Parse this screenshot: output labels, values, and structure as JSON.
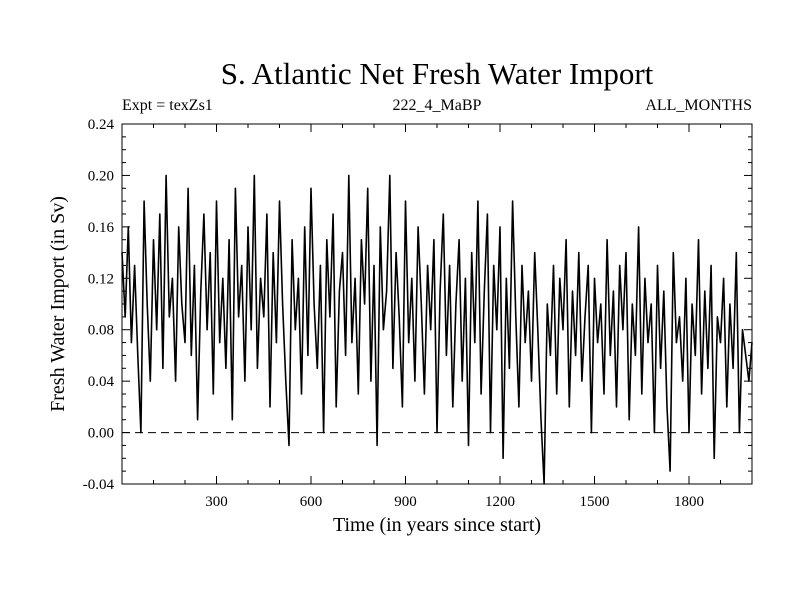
{
  "chart_data": {
    "type": "line",
    "title": "S. Atlantic Net Fresh Water Import",
    "subtitle_left": "Expt = texZs1",
    "subtitle_center": "222_4_MaBP",
    "subtitle_right": "ALL_MONTHS",
    "xlabel": "Time (in years since start)",
    "ylabel": "Fresh Water Import (in Sv)",
    "xlim": [
      0,
      2000
    ],
    "ylim": [
      -0.04,
      0.24
    ],
    "x_ticks": [
      300,
      600,
      900,
      1200,
      1500,
      1800
    ],
    "x_tick_labels": [
      "300",
      "600",
      "900",
      "1200",
      "1500",
      "1800"
    ],
    "y_ticks": [
      -0.04,
      0.0,
      0.04,
      0.08,
      0.12,
      0.16,
      0.2,
      0.24
    ],
    "y_tick_labels": [
      "-0.04",
      "0.00",
      "0.04",
      "0.08",
      "0.12",
      "0.16",
      "0.20",
      "0.24"
    ],
    "reference_line": {
      "y": 0.0,
      "style": "dashed"
    },
    "line_color": "#000000",
    "series": [
      {
        "name": "Net Fresh Water Import",
        "x": [
          0,
          10,
          20,
          30,
          40,
          50,
          60,
          70,
          80,
          90,
          100,
          110,
          120,
          130,
          140,
          150,
          160,
          170,
          180,
          190,
          200,
          210,
          220,
          230,
          240,
          250,
          260,
          270,
          280,
          290,
          300,
          310,
          320,
          330,
          340,
          350,
          360,
          370,
          380,
          390,
          400,
          410,
          420,
          430,
          440,
          450,
          460,
          470,
          480,
          490,
          500,
          510,
          520,
          530,
          540,
          550,
          560,
          570,
          580,
          590,
          600,
          610,
          620,
          630,
          640,
          650,
          660,
          670,
          680,
          690,
          700,
          710,
          720,
          730,
          740,
          750,
          760,
          770,
          780,
          790,
          800,
          810,
          820,
          830,
          840,
          850,
          860,
          870,
          880,
          890,
          900,
          910,
          920,
          930,
          940,
          950,
          960,
          970,
          980,
          990,
          1000,
          1010,
          1020,
          1030,
          1040,
          1050,
          1060,
          1070,
          1080,
          1090,
          1100,
          1110,
          1120,
          1130,
          1140,
          1150,
          1160,
          1170,
          1180,
          1190,
          1200,
          1210,
          1220,
          1230,
          1240,
          1250,
          1260,
          1270,
          1280,
          1290,
          1300,
          1310,
          1320,
          1330,
          1340,
          1350,
          1360,
          1370,
          1380,
          1390,
          1400,
          1410,
          1420,
          1430,
          1440,
          1450,
          1460,
          1470,
          1480,
          1490,
          1500,
          1510,
          1520,
          1530,
          1540,
          1550,
          1560,
          1570,
          1580,
          1590,
          1600,
          1610,
          1620,
          1630,
          1640,
          1650,
          1660,
          1670,
          1680,
          1690,
          1700,
          1710,
          1720,
          1730,
          1740,
          1750,
          1760,
          1770,
          1780,
          1790,
          1800,
          1810,
          1820,
          1830,
          1840,
          1850,
          1860,
          1870,
          1880,
          1890,
          1900,
          1910,
          1920,
          1930,
          1940,
          1950,
          1960,
          1970,
          1980,
          1990,
          2000
        ],
        "values": [
          0.14,
          0.09,
          0.16,
          0.07,
          0.13,
          0.06,
          0.0,
          0.18,
          0.1,
          0.04,
          0.15,
          0.08,
          0.17,
          0.05,
          0.2,
          0.09,
          0.12,
          0.04,
          0.16,
          0.1,
          0.07,
          0.19,
          0.06,
          0.13,
          0.01,
          0.11,
          0.17,
          0.08,
          0.14,
          0.03,
          0.18,
          0.07,
          0.12,
          0.05,
          0.15,
          0.01,
          0.19,
          0.09,
          0.13,
          0.04,
          0.16,
          0.08,
          0.2,
          0.05,
          0.12,
          0.09,
          0.17,
          0.02,
          0.14,
          0.07,
          0.18,
          0.1,
          0.04,
          -0.01,
          0.15,
          0.08,
          0.12,
          0.03,
          0.16,
          0.06,
          0.19,
          0.1,
          0.05,
          0.13,
          0.0,
          0.15,
          0.09,
          0.17,
          0.02,
          0.11,
          0.14,
          0.06,
          0.2,
          0.07,
          0.12,
          0.03,
          0.15,
          0.1,
          0.19,
          0.04,
          0.13,
          -0.01,
          0.16,
          0.08,
          0.11,
          0.2,
          0.05,
          0.14,
          0.09,
          0.02,
          0.18,
          0.07,
          0.12,
          0.04,
          0.16,
          0.1,
          0.03,
          0.13,
          0.08,
          0.15,
          0.0,
          0.11,
          0.17,
          0.06,
          0.13,
          0.02,
          0.1,
          0.15,
          0.04,
          0.12,
          -0.01,
          0.14,
          0.07,
          0.18,
          0.03,
          0.11,
          0.17,
          0.0,
          0.13,
          0.08,
          0.16,
          -0.02,
          0.12,
          0.05,
          0.18,
          0.09,
          0.02,
          0.13,
          0.07,
          0.11,
          0.04,
          0.14,
          0.08,
          0.01,
          -0.04,
          0.1,
          0.06,
          0.13,
          0.03,
          0.12,
          0.08,
          0.15,
          0.02,
          0.11,
          0.06,
          0.14,
          0.04,
          0.09,
          0.13,
          0.0,
          0.12,
          0.07,
          0.1,
          0.03,
          0.15,
          0.06,
          0.11,
          0.02,
          0.13,
          0.08,
          0.14,
          0.01,
          0.1,
          0.06,
          0.16,
          0.03,
          0.12,
          0.07,
          0.1,
          0.0,
          0.13,
          0.05,
          0.11,
          0.02,
          -0.03,
          0.14,
          0.07,
          0.09,
          0.04,
          0.12,
          0.0,
          0.1,
          0.06,
          0.15,
          0.03,
          0.11,
          0.05,
          0.13,
          -0.02,
          0.09,
          0.07,
          0.12,
          0.02,
          0.1,
          0.05,
          0.14,
          0.0,
          0.08,
          0.06,
          0.04,
          0.07
        ]
      }
    ]
  }
}
